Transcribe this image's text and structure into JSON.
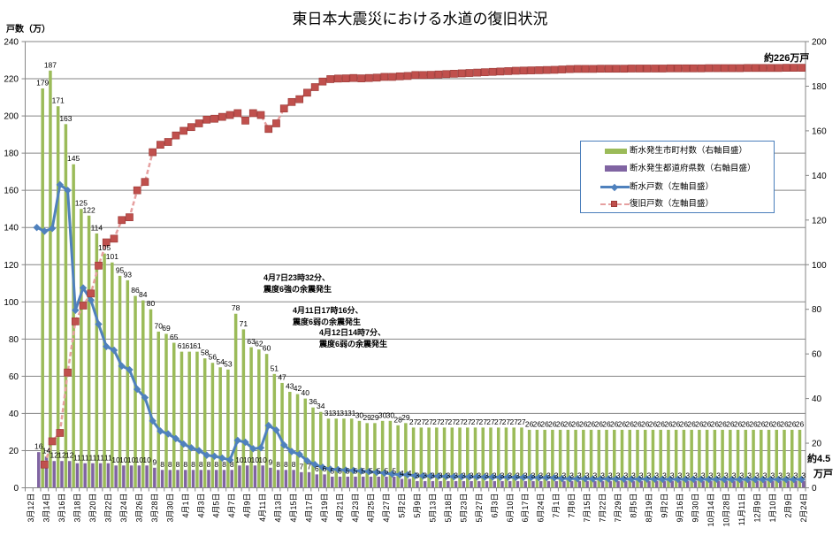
{
  "chart_data": {
    "type": "bar",
    "title": "東日本大震災における水道の復旧状況",
    "y_left_axis": {
      "label": "戸数（万）",
      "min": 0,
      "max": 240,
      "ticks": [
        0,
        20,
        40,
        60,
        80,
        100,
        120,
        140,
        160,
        180,
        200,
        220,
        240
      ]
    },
    "y_right_axis": {
      "label": "",
      "min": 0,
      "max": 200,
      "ticks": [
        0,
        20,
        40,
        60,
        80,
        100,
        120,
        140,
        160,
        180,
        200
      ]
    },
    "grid": true,
    "legend_position": "right-middle",
    "x_tick_label_every": 2,
    "x_tick_labels": [
      "3月12日",
      "3月14日",
      "3月16日",
      "3月18日",
      "3月20日",
      "3月22日",
      "3月24日",
      "3月26日",
      "3月28日",
      "3月30日",
      "4月1日",
      "4月3日",
      "4月5日",
      "4月7日",
      "4月9日",
      "4月11日",
      "4月13日",
      "4月15日",
      "4月17日",
      "4月19日",
      "4月21日",
      "4月23日",
      "4月25日",
      "4月27日",
      "5月2日",
      "5月9日",
      "5月13日",
      "5月18日",
      "5月23日",
      "5月27日",
      "6月3日",
      "6月10日",
      "6月17日",
      "6月24日",
      "7月1日",
      "7月8日",
      "7月15日",
      "7月22日",
      "7月29日",
      "8月5日",
      "8月19日",
      "9月2日",
      "9月16日",
      "9月30日",
      "10月14日",
      "10月28日",
      "11月11日",
      "12月9日",
      "1月10日",
      "2月9日",
      "2月24日"
    ],
    "series": [
      {
        "name": "断水発生市町村数（右軸目盛）",
        "type": "bar",
        "axis": "right",
        "color": "#9bbb59",
        "data_labels": true,
        "values": [
          null,
          null,
          179,
          187,
          171,
          163,
          145,
          125,
          122,
          114,
          105,
          101,
          95,
          93,
          86,
          84,
          80,
          70,
          69,
          65,
          61,
          61,
          61,
          58,
          56,
          54,
          53,
          78,
          71,
          63,
          62,
          60,
          51,
          47,
          43,
          42,
          40,
          36,
          34,
          31,
          31,
          31,
          31,
          30,
          29,
          29,
          30,
          30,
          28,
          29,
          27,
          27,
          27,
          27,
          27,
          27,
          27,
          27,
          27,
          27,
          27,
          27,
          27,
          27,
          27,
          26,
          26,
          26,
          26,
          26,
          26,
          26,
          26,
          26,
          26,
          26,
          26,
          26,
          26,
          26,
          26,
          26,
          26,
          26,
          26,
          26,
          26,
          26,
          26,
          26,
          26,
          26,
          26,
          26,
          26,
          26,
          26,
          26,
          26,
          26,
          26
        ]
      },
      {
        "name": "断水発生都道府県数（右軸目盛）",
        "type": "bar",
        "axis": "right",
        "color": "#8064a2",
        "data_labels": true,
        "values": [
          null,
          16,
          14,
          12,
          12,
          12,
          11,
          11,
          11,
          11,
          11,
          10,
          10,
          10,
          10,
          10,
          9,
          8,
          8,
          8,
          8,
          8,
          8,
          8,
          8,
          8,
          8,
          10,
          10,
          10,
          10,
          9,
          8,
          8,
          8,
          7,
          7,
          6,
          6,
          5,
          5,
          5,
          5,
          5,
          5,
          5,
          5,
          5,
          4,
          4,
          3,
          3,
          3,
          3,
          3,
          3,
          3,
          3,
          3,
          3,
          3,
          3,
          3,
          3,
          3,
          3,
          3,
          3,
          3,
          3,
          3,
          3,
          3,
          3,
          3,
          3,
          3,
          3,
          3,
          3,
          3,
          3,
          3,
          3,
          3,
          3,
          3,
          3,
          3,
          3,
          3,
          3,
          3,
          3,
          3,
          3,
          3,
          3,
          3,
          3,
          3
        ]
      },
      {
        "name": "断水戸数（左軸目盛）",
        "type": "line",
        "axis": "left",
        "color": "#4f81bd",
        "marker": "diamond",
        "values": [
          null,
          140,
          138,
          139.5,
          163,
          160,
          95.5,
          107.5,
          101,
          88,
          76,
          74,
          65.5,
          63.5,
          53,
          48.5,
          36,
          30.5,
          29,
          26.5,
          23.5,
          21.5,
          20,
          17.5,
          17,
          16,
          15,
          25.5,
          24.5,
          21,
          21.5,
          33.5,
          31,
          23,
          19.5,
          18,
          14.5,
          12.5,
          11,
          10,
          9.8,
          9.5,
          9.3,
          9,
          8.7,
          8.3,
          7.9,
          7.4,
          7,
          7,
          6.5,
          6.4,
          6.3,
          6.2,
          6.1,
          6.0,
          6.0,
          5.9,
          5.9,
          5.8,
          5.8,
          5.7,
          5.7,
          5.6,
          5.6,
          5.6,
          5.5,
          5.5,
          5.4,
          5.0,
          4.9,
          4.9,
          4.9,
          4.8,
          4.8,
          4.8,
          4.8,
          4.7,
          4.7,
          4.7,
          4.7,
          4.7,
          4.6,
          4.6,
          4.6,
          4.6,
          4.6,
          4.6,
          4.6,
          4.6,
          4.5,
          4.5,
          4.5,
          4.5,
          4.5,
          4.5,
          4.5,
          4.5,
          4.5,
          4.5,
          4.5
        ]
      },
      {
        "name": "復旧戸数（左軸目盛）",
        "type": "line",
        "axis": "left",
        "color": "#c0504d",
        "line_color": "#e6a0a0",
        "marker": "square",
        "dashed": true,
        "values": [
          null,
          null,
          12.5,
          25,
          29.5,
          62,
          89.5,
          98,
          104.5,
          119.5,
          132,
          134,
          144,
          145.5,
          160,
          164.5,
          180.5,
          184.5,
          186,
          189.5,
          192,
          194,
          196,
          198,
          198.5,
          199.5,
          200.5,
          201.5,
          197.5,
          201.5,
          200.5,
          193,
          196,
          204,
          207.5,
          209,
          212.5,
          215.5,
          218.5,
          219.8,
          220.1,
          220.2,
          220.4,
          220.2,
          220.4,
          220.6,
          221,
          221,
          221.3,
          221.5,
          222,
          222,
          222.1,
          222.3,
          222.5,
          222.7,
          222.9,
          223.1,
          223.3,
          223.5,
          223.7,
          223.9,
          224.1,
          224.3,
          224.4,
          224.5,
          224.6,
          224.7,
          224.8,
          225.0,
          225.2,
          225.3,
          225.3,
          225.3,
          225.4,
          225.4,
          225.4,
          225.4,
          225.5,
          225.5,
          225.5,
          225.5,
          225.5,
          225.6,
          225.6,
          225.6,
          225.6,
          225.6,
          225.7,
          225.7,
          225.7,
          225.7,
          225.7,
          225.8,
          225.8,
          225.8,
          225.8,
          225.8,
          225.9,
          225.9,
          225.9
        ]
      }
    ],
    "annotations": [
      {
        "line1": "4月7日23時32分、",
        "line2": "震度6強の余震発生"
      },
      {
        "line1": "4月11日17時16分、",
        "line2": "震度6弱の余震発生"
      },
      {
        "line1": "4月12日14時7分、",
        "line2": "震度6弱の余震発生"
      }
    ],
    "end_labels": {
      "restored": "約226万戸",
      "cutoff_value": "約4.5",
      "cutoff_unit": "万戸"
    }
  }
}
